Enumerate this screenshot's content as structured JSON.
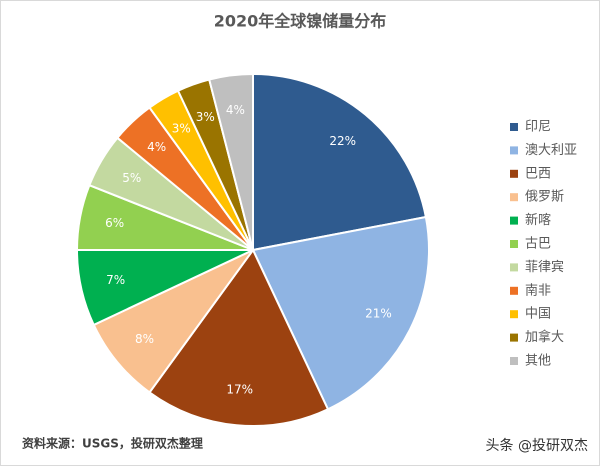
{
  "chart_data": {
    "type": "pie",
    "title": "2020年全球镍储量分布",
    "categories": [
      "印尼",
      "澳大利亚",
      "巴西",
      "俄罗斯",
      "新喀",
      "古巴",
      "菲律宾",
      "南非",
      "中国",
      "加拿大",
      "其他"
    ],
    "values": [
      22,
      21,
      17,
      8,
      7,
      6,
      5,
      4,
      3,
      3,
      4
    ],
    "value_labels": [
      "22%",
      "21%",
      "17%",
      "8%",
      "7%",
      "6%",
      "5%",
      "4%",
      "3%",
      "3%",
      "4%"
    ],
    "colors": [
      "#2f5b8f",
      "#8fb4e3",
      "#9c4210",
      "#f9c08f",
      "#00b050",
      "#92d050",
      "#c3d9a0",
      "#ed7125",
      "#ffc000",
      "#9a7400",
      "#bfbfbf"
    ],
    "legend": "right",
    "source": "资料来源：USGS，投研双杰整理",
    "watermark": "头条 @投研双杰"
  }
}
